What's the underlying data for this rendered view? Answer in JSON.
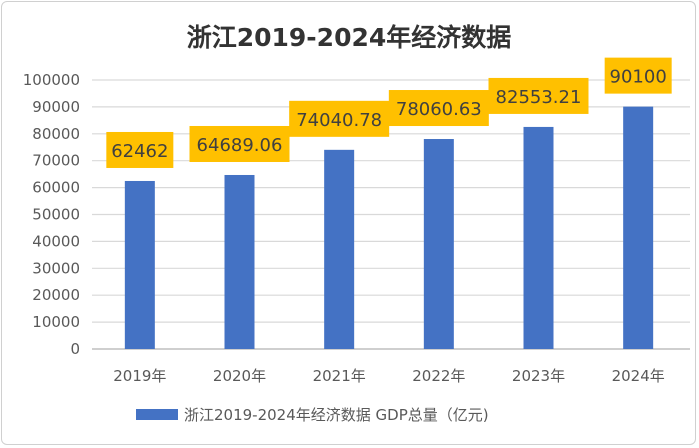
{
  "chart_data": {
    "type": "bar",
    "title": "浙江2019-2024年经济数据",
    "categories": [
      "2019年",
      "2020年",
      "2021年",
      "2022年",
      "2023年",
      "2024年"
    ],
    "series": [
      {
        "name": "浙江2019-2024年经济数据 GDP总量（亿元)",
        "values": [
          62462,
          64689.06,
          74040.78,
          78060.63,
          82553.21,
          90100
        ]
      }
    ],
    "data_labels": [
      "62462",
      "64689.06",
      "74040.78",
      "78060.63",
      "82553.21",
      "90100"
    ],
    "ylim": [
      0,
      100000
    ],
    "yticks": [
      0,
      10000,
      20000,
      30000,
      40000,
      50000,
      60000,
      70000,
      80000,
      90000,
      100000
    ],
    "xlabel": "",
    "ylabel": "",
    "grid": true,
    "legend_position": "bottom",
    "colors": {
      "bar": "#4472C4",
      "label_bg": "#FFC000",
      "grid": "#D9D9D9"
    }
  }
}
